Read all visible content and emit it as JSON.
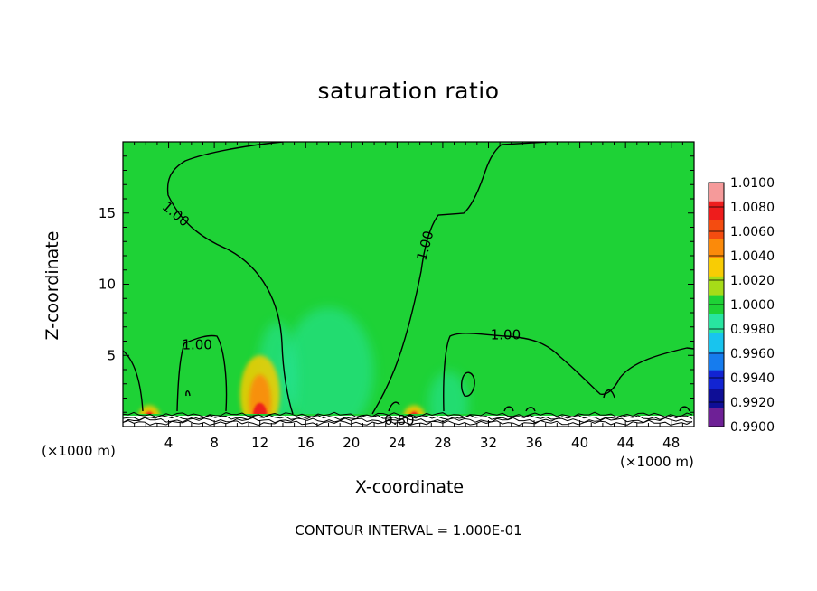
{
  "chart_data": {
    "type": "heatmap",
    "title": "saturation ratio",
    "xlabel": "X-coordinate",
    "ylabel": "Z-coordinate",
    "x_unit_label": "(×1000 m)",
    "x_ticks": [
      4,
      8,
      12,
      16,
      20,
      24,
      28,
      32,
      36,
      40,
      44,
      48
    ],
    "y_ticks": [
      5,
      10,
      15
    ],
    "xlim": [
      0,
      50
    ],
    "ylim": [
      0,
      20
    ],
    "footer": "CONTOUR INTERVAL = 1.000E-01",
    "background_value": 1.0002,
    "colorbar": {
      "levels": [
        "1.0100",
        "1.0080",
        "1.0060",
        "1.0040",
        "1.0020",
        "1.0000",
        "0.9980",
        "0.9960",
        "0.9940",
        "0.9920",
        "0.9900"
      ],
      "colors": [
        "#f59a9a",
        "#ee1c1c",
        "#f44c10",
        "#fb8a0a",
        "#f8cc04",
        "#a6dc18",
        "#1ed236",
        "#28e5a0",
        "#18c4ee",
        "#167cee",
        "#1224d2",
        "#0e0e96",
        "#6e2096"
      ]
    },
    "contour_labels": [
      {
        "text": "1.00",
        "x": 4.6,
        "z": 14.9
      },
      {
        "text": "1.00",
        "x": 26.5,
        "z": 12.7
      },
      {
        "text": "1.00",
        "x": 6.5,
        "z": 5.7
      },
      {
        "text": "1.00",
        "x": 33.5,
        "z": 6.4
      },
      {
        "text": "0.80",
        "x": 24.2,
        "z": 0.4
      }
    ],
    "features": [
      {
        "kind": "supersaturated cell",
        "x": 12,
        "z_top": 5,
        "peak": 1.006
      },
      {
        "kind": "supersaturated cell",
        "x": 2.3,
        "z_top": 1.5,
        "peak": 1.005
      },
      {
        "kind": "supersaturated cell",
        "x": 25.5,
        "z_top": 1.5,
        "peak": 1.005
      },
      {
        "kind": "subsaturated plume",
        "x": 18,
        "z_top": 9,
        "min": 0.998
      },
      {
        "kind": "subsaturated plume",
        "x": 28.5,
        "z_top": 4.5,
        "min": 0.998
      },
      {
        "kind": "subsaturated plume",
        "x": 13.5,
        "z_top": 8,
        "min": 0.9985
      }
    ]
  }
}
